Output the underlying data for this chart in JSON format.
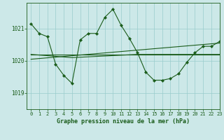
{
  "title": "Graphe pression niveau de la mer (hPa)",
  "bg_color": "#cce8e8",
  "grid_color": "#99cccc",
  "line_color": "#1a5c1a",
  "xlim": [
    -0.5,
    23
  ],
  "ylim": [
    1018.5,
    1021.8
  ],
  "yticks": [
    1019,
    1020,
    1021
  ],
  "xticks": [
    0,
    1,
    2,
    3,
    4,
    5,
    6,
    7,
    8,
    9,
    10,
    11,
    12,
    13,
    14,
    15,
    16,
    17,
    18,
    19,
    20,
    21,
    22,
    23
  ],
  "series_main": {
    "x": [
      0,
      1,
      2,
      3,
      4,
      5,
      6,
      7,
      8,
      9,
      10,
      11,
      12,
      13,
      14,
      15,
      16,
      17,
      18,
      19,
      20,
      21,
      22,
      23
    ],
    "y": [
      1021.15,
      1020.85,
      1020.75,
      1019.9,
      1019.55,
      1019.3,
      1020.65,
      1020.85,
      1020.85,
      1021.35,
      1021.6,
      1021.1,
      1020.7,
      1020.25,
      1019.65,
      1019.4,
      1019.4,
      1019.45,
      1019.6,
      1019.95,
      1020.25,
      1020.45,
      1020.45,
      1020.6
    ]
  },
  "series_flat": {
    "x": [
      0,
      23
    ],
    "y": [
      1020.2,
      1020.2
    ]
  },
  "series_rising": {
    "x": [
      0,
      23
    ],
    "y": [
      1020.05,
      1020.55
    ]
  },
  "series_slight": {
    "x": [
      0,
      5,
      13,
      23
    ],
    "y": [
      1020.2,
      1020.1,
      1020.2,
      1020.2
    ]
  }
}
